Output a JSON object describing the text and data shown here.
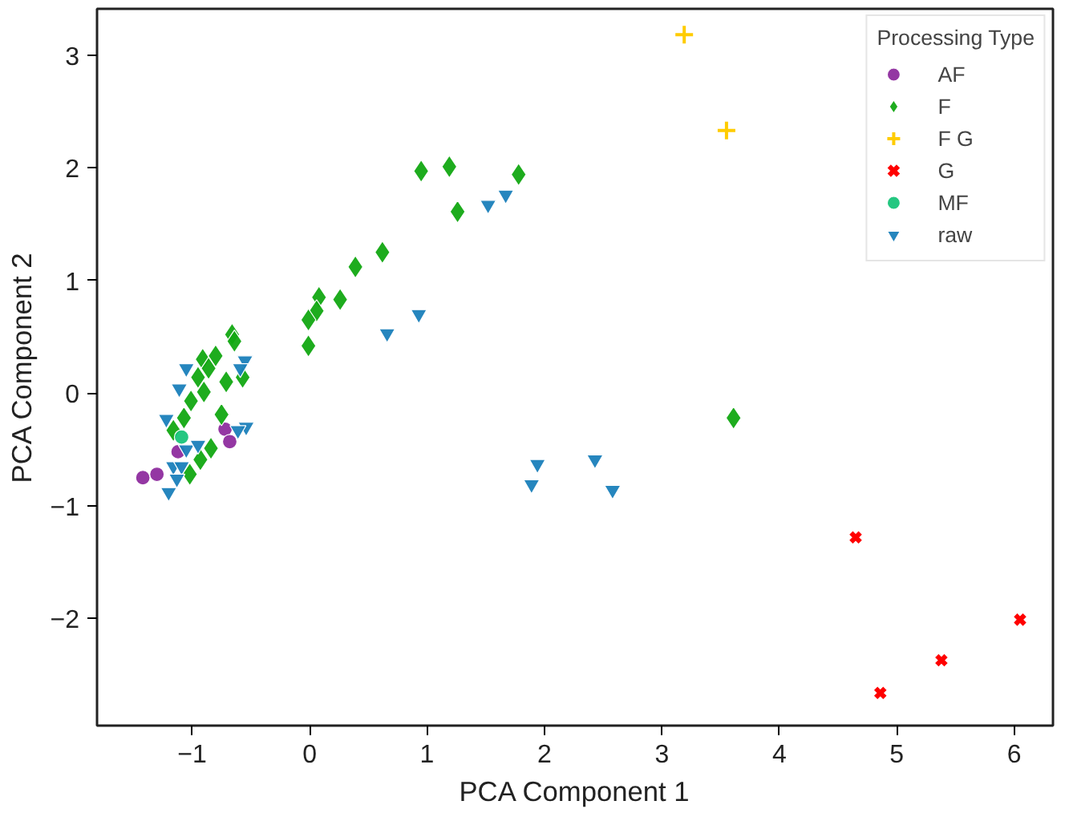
{
  "chart_data": {
    "type": "scatter",
    "xlabel": "PCA Component 1",
    "ylabel": "PCA Component 2",
    "legend_title": "Processing Type",
    "legend": "top right",
    "grid": false,
    "xlim": [
      -1.81,
      6.33
    ],
    "ylim": [
      -2.95,
      3.41
    ],
    "xticks": [
      {
        "value": -1,
        "label": "−1"
      },
      0,
      1,
      2,
      3,
      4,
      5,
      6
    ],
    "yticks": [
      {
        "value": -2,
        "label": "−2"
      },
      {
        "value": -1,
        "label": "−1"
      },
      0,
      1,
      2,
      3
    ],
    "series": [
      {
        "name": "AF",
        "color": "#8e2c9e",
        "marker": "circle",
        "x": [
          -1.42,
          -1.3,
          -0.72,
          -0.68,
          -1.12
        ],
        "values": [
          -0.75,
          -0.72,
          -0.32,
          -0.43,
          -0.52
        ]
      },
      {
        "name": "F",
        "color": "#12a812",
        "marker": "diamond",
        "x": [
          0.95,
          1.19,
          1.78,
          1.26,
          0.62,
          0.39,
          0.26,
          0.08,
          0.06,
          -0.01,
          -0.01,
          3.61,
          -0.66,
          -0.64,
          -0.91,
          -0.8,
          -0.86,
          -0.95,
          -0.71,
          -0.57,
          -0.9,
          -1.01,
          -1.07,
          -0.75,
          -1.16,
          -0.84,
          -0.93,
          -1.02
        ],
        "values": [
          1.97,
          2.01,
          1.94,
          1.61,
          1.25,
          1.12,
          0.83,
          0.85,
          0.73,
          0.65,
          0.42,
          -0.22,
          0.52,
          0.46,
          0.3,
          0.33,
          0.22,
          0.14,
          0.1,
          0.14,
          0.01,
          -0.07,
          -0.22,
          -0.19,
          -0.33,
          -0.49,
          -0.59,
          -0.72
        ]
      },
      {
        "name": "F G",
        "color": "#ffcc00",
        "marker": "cross",
        "x": [
          3.19,
          3.55
        ],
        "values": [
          3.18,
          2.33
        ]
      },
      {
        "name": "G",
        "color": "#ff0000",
        "marker": "x",
        "x": [
          4.65,
          6.05,
          5.38,
          4.86
        ],
        "values": [
          -1.28,
          -2.01,
          -2.37,
          -2.66
        ]
      },
      {
        "name": "MF",
        "color": "#19c47a",
        "marker": "circle",
        "x": [
          -1.09
        ],
        "values": [
          -0.39
        ]
      },
      {
        "name": "raw",
        "color": "#1a80bb",
        "marker": "triangle_down",
        "x": [
          1.52,
          1.67,
          0.93,
          0.66,
          1.94,
          1.89,
          2.43,
          2.58,
          -1.05,
          -1.11,
          -0.55,
          -0.59,
          -1.22,
          -0.54,
          -0.61,
          -1.05,
          -0.95,
          -1.16,
          -1.09,
          -1.13,
          -1.2
        ],
        "values": [
          1.67,
          1.76,
          0.7,
          0.53,
          -0.63,
          -0.81,
          -0.59,
          -0.86,
          0.22,
          0.04,
          0.29,
          0.22,
          -0.23,
          -0.3,
          -0.33,
          -0.5,
          -0.46,
          -0.65,
          -0.65,
          -0.76,
          -0.88
        ]
      }
    ]
  }
}
